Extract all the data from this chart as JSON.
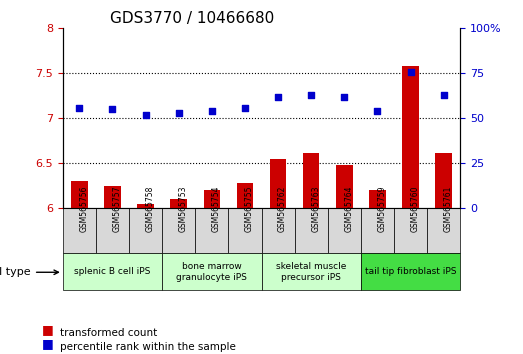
{
  "title": "GDS3770 / 10466680",
  "samples": [
    "GSM565756",
    "GSM565757",
    "GSM565758",
    "GSM565753",
    "GSM565754",
    "GSM565755",
    "GSM565762",
    "GSM565763",
    "GSM565764",
    "GSM565759",
    "GSM565760",
    "GSM565761"
  ],
  "transformed_count": [
    6.3,
    6.25,
    6.05,
    6.1,
    6.2,
    6.28,
    6.55,
    6.62,
    6.48,
    6.2,
    7.58,
    6.62
  ],
  "percentile_rank": [
    56,
    55,
    52,
    53,
    54,
    56,
    62,
    63,
    62,
    54,
    76,
    63
  ],
  "bar_color": "#cc0000",
  "dot_color": "#0000cc",
  "left_ylim": [
    6,
    8
  ],
  "right_ylim": [
    0,
    100
  ],
  "left_yticks": [
    6,
    6.5,
    7,
    7.5,
    8
  ],
  "right_yticks": [
    0,
    25,
    50,
    75,
    100
  ],
  "left_ytick_labels": [
    "6",
    "6.5",
    "7",
    "7.5",
    "8"
  ],
  "right_ytick_labels": [
    "0",
    "25",
    "50",
    "75",
    "100%"
  ],
  "cell_types": [
    {
      "label": "splenic B cell iPS",
      "start": 0,
      "end": 3,
      "color": "#ccffcc"
    },
    {
      "label": "bone marrow\ngranulocyte iPS",
      "start": 3,
      "end": 6,
      "color": "#ccffcc"
    },
    {
      "label": "skeletal muscle\nprecursor iPS",
      "start": 6,
      "end": 9,
      "color": "#ccffcc"
    },
    {
      "label": "tail tip fibroblast iPS",
      "start": 9,
      "end": 12,
      "color": "#44dd44"
    }
  ],
  "legend_items": [
    {
      "label": "transformed count",
      "color": "#cc0000",
      "marker": "s"
    },
    {
      "label": "percentile rank within the sample",
      "color": "#0000cc",
      "marker": "s"
    }
  ],
  "grid_color": "black",
  "grid_style": "dotted",
  "xlabel": "cell type"
}
